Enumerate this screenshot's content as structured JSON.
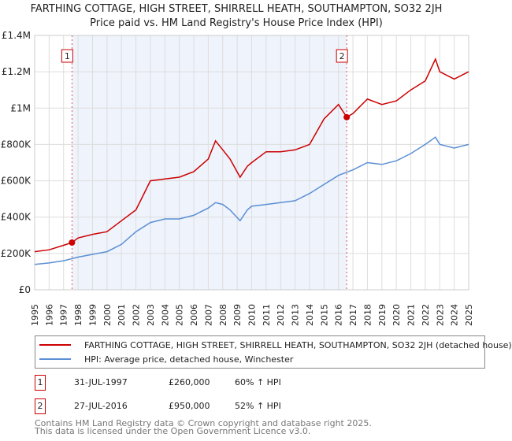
{
  "chart_data": {
    "type": "line",
    "title": "FARTHING COTTAGE, HIGH STREET, SHIRRELL HEATH, SOUTHAMPTON, SO32 2JH",
    "subtitle": "Price paid vs. HM Land Registry's House Price Index (HPI)",
    "xlim": [
      1995,
      2025
    ],
    "ylim": [
      0,
      1400000
    ],
    "x_ticks": [
      "1995",
      "1996",
      "1997",
      "1998",
      "1999",
      "2000",
      "2001",
      "2002",
      "2003",
      "2004",
      "2005",
      "2006",
      "2007",
      "2008",
      "2009",
      "2010",
      "2011",
      "2012",
      "2013",
      "2014",
      "2015",
      "2016",
      "2017",
      "2018",
      "2019",
      "2020",
      "2021",
      "2022",
      "2023",
      "2024",
      "2025"
    ],
    "y_ticks": [
      {
        "v": 0,
        "label": "£0"
      },
      {
        "v": 200000,
        "label": "£200K"
      },
      {
        "v": 400000,
        "label": "£400K"
      },
      {
        "v": 600000,
        "label": "£600K"
      },
      {
        "v": 800000,
        "label": "£800K"
      },
      {
        "v": 1000000,
        "label": "£1M"
      },
      {
        "v": 1200000,
        "label": "£1.2M"
      },
      {
        "v": 1400000,
        "label": "£1.4M"
      }
    ],
    "series": [
      {
        "name": "FARTHING COTTAGE, HIGH STREET, SHIRRELL HEATH, SOUTHAMPTON, SO32 2JH (detached house)",
        "color": "#cc0000",
        "x": [
          1995,
          1996,
          1997,
          1997.58,
          1998,
          1999,
          2000,
          2001,
          2002,
          2002.5,
          2003,
          2004,
          2005,
          2006,
          2007,
          2007.5,
          2008,
          2008.5,
          2009.2,
          2009.7,
          2010,
          2011,
          2012,
          2013,
          2014,
          2015,
          2016,
          2016.57,
          2017,
          2018,
          2019,
          2020,
          2021,
          2022,
          2022.7,
          2023,
          2024,
          2025
        ],
        "y": [
          210000,
          220000,
          245000,
          260000,
          285000,
          305000,
          320000,
          380000,
          440000,
          520000,
          600000,
          610000,
          620000,
          650000,
          720000,
          820000,
          770000,
          720000,
          620000,
          680000,
          700000,
          760000,
          760000,
          770000,
          800000,
          940000,
          1020000,
          950000,
          970000,
          1050000,
          1020000,
          1040000,
          1100000,
          1150000,
          1270000,
          1200000,
          1160000,
          1200000
        ]
      },
      {
        "name": "HPI: Average price, detached house, Winchester",
        "color": "#5b8fd4",
        "x": [
          1995,
          1996,
          1997,
          1998,
          1999,
          2000,
          2001,
          2002,
          2003,
          2004,
          2005,
          2006,
          2007,
          2007.5,
          2008,
          2008.5,
          2009.2,
          2009.7,
          2010,
          2011,
          2012,
          2013,
          2014,
          2015,
          2016,
          2017,
          2018,
          2019,
          2020,
          2021,
          2022,
          2022.7,
          2023,
          2024,
          2025
        ],
        "y": [
          140000,
          148000,
          160000,
          180000,
          195000,
          210000,
          250000,
          320000,
          370000,
          390000,
          390000,
          410000,
          450000,
          480000,
          470000,
          440000,
          380000,
          440000,
          460000,
          470000,
          480000,
          490000,
          530000,
          580000,
          630000,
          660000,
          700000,
          690000,
          710000,
          750000,
          800000,
          840000,
          800000,
          780000,
          800000
        ]
      }
    ],
    "sales": [
      {
        "label": "1",
        "x": 1997.58,
        "y": 260000,
        "date": "31-JUL-1997",
        "price": "£260,000",
        "hpi": "60% ↑ HPI"
      },
      {
        "label": "2",
        "x": 2016.57,
        "y": 950000,
        "date": "27-JUL-2016",
        "price": "£950,000",
        "hpi": "52% ↑ HPI"
      }
    ]
  },
  "legend": {
    "red": "FARTHING COTTAGE, HIGH STREET, SHIRRELL HEATH, SOUTHAMPTON, SO32 2JH (detached house)",
    "blue": "HPI: Average price, detached house, Winchester"
  },
  "footer": [
    "Contains HM Land Registry data © Crown copyright and database right 2025.",
    "This data is licensed under the Open Government Licence v3.0."
  ]
}
